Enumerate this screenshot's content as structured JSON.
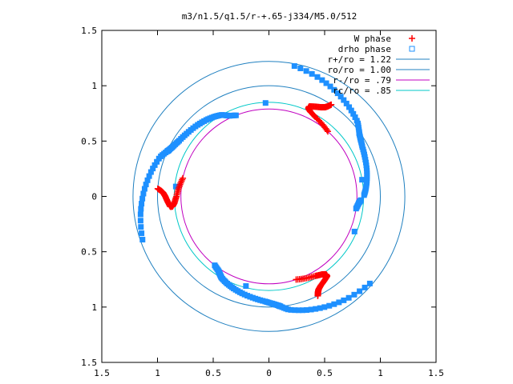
{
  "chart_data": {
    "type": "scatter",
    "title": "m3/n1.5/q1.5/r-+.65-j334/M5.0/512",
    "xlabel": "",
    "ylabel": "",
    "xlim": [
      -1.5,
      1.5
    ],
    "ylim": [
      -1.5,
      1.5
    ],
    "x_tick_labels": [
      "1.5",
      "1",
      "0.5",
      "0",
      "0.5",
      "1",
      "1.5"
    ],
    "y_tick_labels": [
      "1.5",
      "1",
      "0.5",
      "0",
      "0.5",
      "1",
      "1.5"
    ],
    "tick_values": [
      -1.5,
      -1,
      -0.5,
      0,
      0.5,
      1,
      1.5
    ],
    "grid": false,
    "legend_position": "top-right",
    "legend": [
      {
        "label": "W phase",
        "marker": "plus",
        "color": "#ff0000"
      },
      {
        "label": "drho phase",
        "marker": "square",
        "color": "#1e90ff"
      },
      {
        "label": "r+/ro = 1.22",
        "marker": "line",
        "color": "#2080c0"
      },
      {
        "label": "ro/ro = 1.00",
        "marker": "line",
        "color": "#2080c0"
      },
      {
        "label": "r-/ro =  .79",
        "marker": "line",
        "color": "#c000c0"
      },
      {
        "label": "rc/ro =  .85",
        "marker": "line",
        "color": "#00c8c8"
      }
    ],
    "circles": [
      {
        "r": 1.22,
        "color": "#2080c0"
      },
      {
        "r": 1.0,
        "color": "#2080c0"
      },
      {
        "r": 0.79,
        "color": "#c000c0"
      },
      {
        "r": 0.85,
        "color": "#00c8c8"
      }
    ],
    "series": [
      {
        "name": "W phase",
        "marker": "plus",
        "color": "#ff0000",
        "arms": [
          {
            "r": [
              0.79,
              0.81,
              0.83,
              0.85,
              0.87,
              0.89,
              0.91,
              0.93,
              0.95,
              0.97,
              1.0
            ],
            "theta_deg": [
              48,
              54,
              60,
              64,
              66,
              66,
              63,
              60,
              58,
              57,
              56
            ]
          },
          {
            "r": [
              0.79,
              0.81,
              0.83,
              0.85,
              0.87,
              0.89,
              0.91,
              0.93,
              0.95,
              0.97,
              1.0
            ],
            "theta_deg": [
              168,
              174,
              180,
              184,
              186,
              186,
              183,
              180,
              178,
              177,
              176
            ]
          },
          {
            "r": [
              0.79,
              0.81,
              0.83,
              0.85,
              0.87,
              0.89,
              0.91,
              0.93,
              0.95,
              0.97,
              1.0
            ],
            "theta_deg": [
              288,
              294,
              300,
              304,
              306,
              306,
              303,
              300,
              298,
              297,
              296
            ]
          }
        ]
      },
      {
        "name": "drho phase",
        "marker": "square",
        "color": "#1e90ff",
        "arms": [
          {
            "r": [
              0.79,
              0.81,
              0.83,
              0.85,
              0.87,
              0.89,
              0.91,
              0.93,
              0.95,
              0.97,
              0.99,
              1.0,
              1.04,
              1.08,
              1.12,
              1.16,
              1.2
            ],
            "theta_deg": [
              352,
              356,
              358,
              0,
              4,
              9,
              15,
              22,
              28,
              32,
              35,
              36,
              40,
              48,
              57,
              67,
              79
            ]
          },
          {
            "r": [
              0.79,
              0.81,
              0.83,
              0.85,
              0.87,
              0.89,
              0.91,
              0.93,
              0.95,
              0.97,
              0.99,
              1.0,
              1.04,
              1.08,
              1.12,
              1.16,
              1.2
            ],
            "theta_deg": [
              112,
              116,
              118,
              120,
              124,
              129,
              135,
              142,
              148,
              152,
              155,
              156,
              160,
              168,
              177,
              187,
              199
            ]
          },
          {
            "r": [
              0.79,
              0.81,
              0.83,
              0.85,
              0.87,
              0.89,
              0.91,
              0.93,
              0.95,
              0.97,
              0.99,
              1.0,
              1.04,
              1.08,
              1.12,
              1.16,
              1.2
            ],
            "theta_deg": [
              232,
              236,
              238,
              240,
              244,
              249,
              255,
              262,
              268,
              272,
              275,
              276,
              280,
              288,
              297,
              307,
              319
            ]
          }
        ]
      }
    ]
  }
}
